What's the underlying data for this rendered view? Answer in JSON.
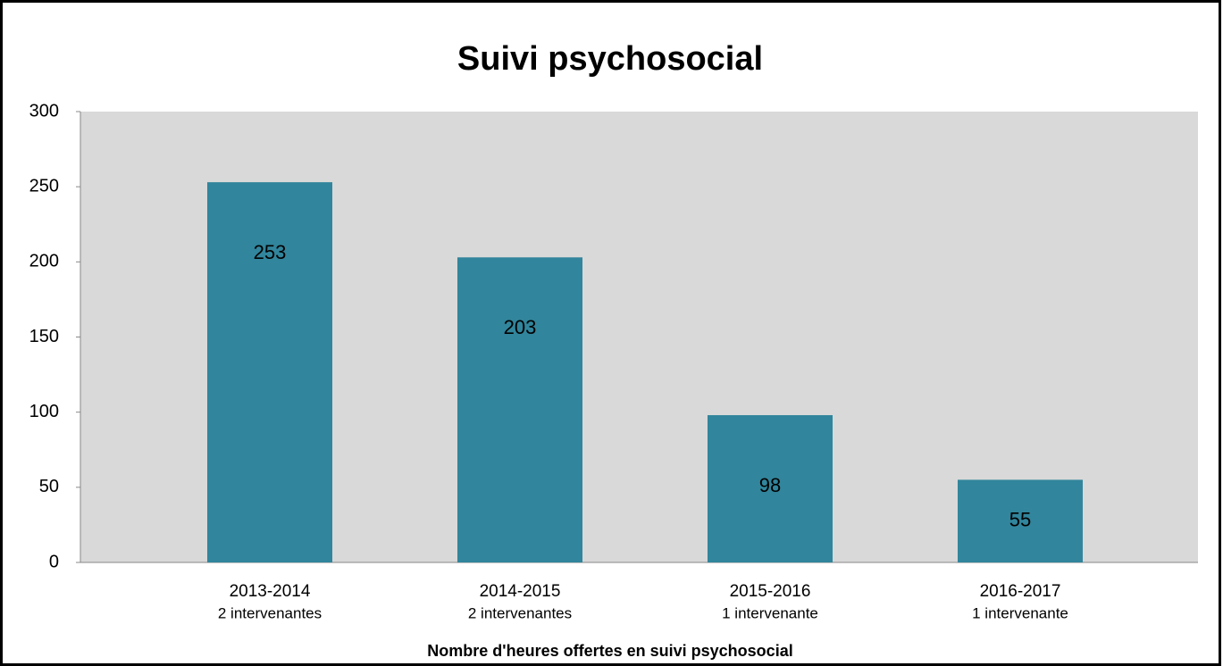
{
  "chart_data": {
    "type": "bar",
    "title": "Suivi psychosocial",
    "x_axis_label": "Nombre d'heures offertes en suivi psychosocial",
    "categories": [
      "2013-2014",
      "2014-2015",
      "2015-2016",
      "2016-2017"
    ],
    "category_notes": [
      "2 intervenantes",
      "2 intervenantes",
      "1 intervenante",
      "1 intervenante"
    ],
    "values": [
      253,
      203,
      98,
      55
    ],
    "color": "#31859c",
    "ylim": [
      0,
      300
    ],
    "yticks": [
      0,
      50,
      100,
      150,
      200,
      250,
      300
    ],
    "grid": false,
    "plot_background": "#d9d9d9"
  }
}
